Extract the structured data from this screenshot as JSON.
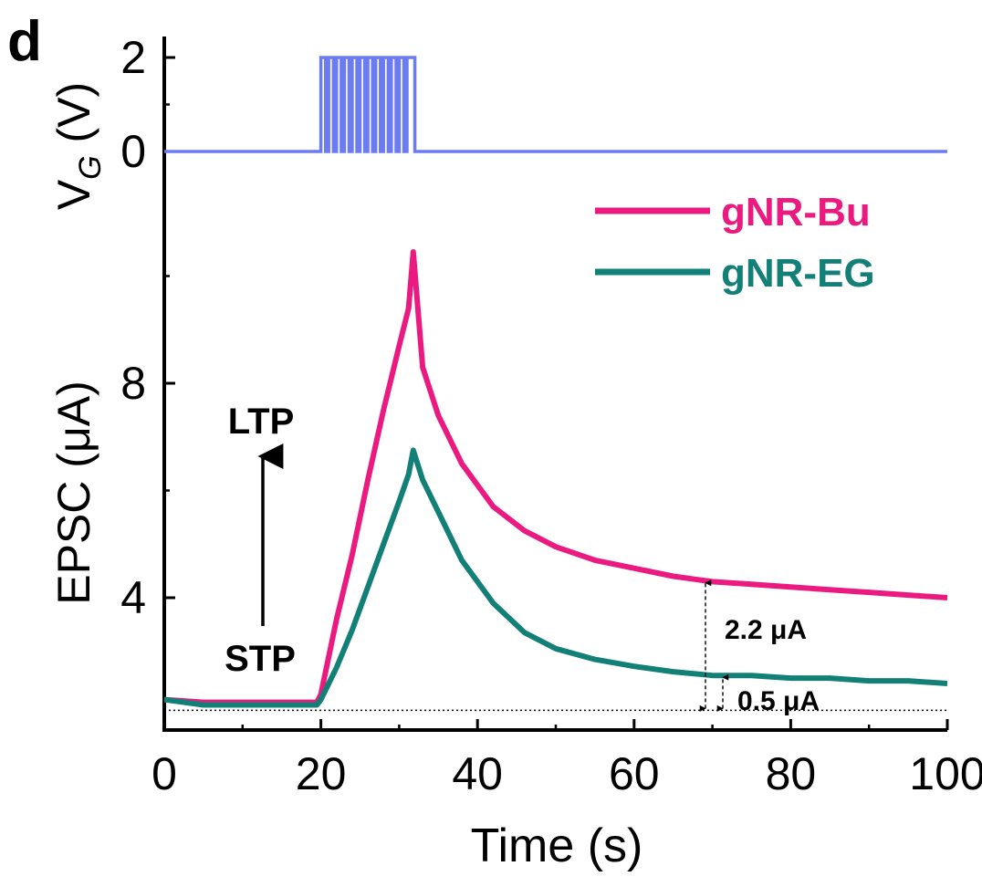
{
  "panel_label": "d",
  "colors": {
    "pulse": "#6b7bf2",
    "gnr_bu": "#ea1a80",
    "gnr_eg": "#138078",
    "axis": "#000000"
  },
  "chart_data": {
    "type": "line",
    "title": "",
    "xlabel": "Time (s)",
    "xlim": [
      0,
      100
    ],
    "x_ticks": [
      0,
      20,
      40,
      60,
      80,
      100
    ],
    "x_tick_labels": [
      "0",
      "20",
      "40",
      "60",
      "80",
      "100"
    ],
    "top_panel": {
      "ylabel_main": "V",
      "ylabel_sub": "G",
      "ylabel_unit": " (V)",
      "ylim": [
        0,
        2
      ],
      "y_ticks": [
        0,
        2
      ],
      "y_tick_labels": [
        "0",
        "2"
      ],
      "pulse_series": {
        "name": "V_G",
        "pulse_start": 20,
        "pulse_end": 32,
        "pulse_count": 12,
        "high": 2,
        "low": 0
      }
    },
    "bottom_panel": {
      "ylabel": "EPSC (μA)",
      "ylim": [
        1.7,
        11.4
      ],
      "y_ticks": [
        4,
        8
      ],
      "y_tick_labels": [
        "4",
        "8"
      ],
      "baseline": 1.9,
      "series": [
        {
          "name": "gNR-Bu",
          "x": [
            0,
            5,
            10,
            15,
            19.5,
            20,
            22,
            24,
            26,
            28,
            30,
            31.2,
            31.8,
            33,
            35,
            38,
            42,
            46,
            50,
            55,
            60,
            65,
            70,
            75,
            80,
            85,
            90,
            95,
            100
          ],
          "y": [
            2.1,
            2.05,
            2.05,
            2.05,
            2.05,
            2.2,
            3.6,
            4.8,
            6.2,
            7.5,
            8.7,
            9.4,
            10.45,
            8.3,
            7.4,
            6.5,
            5.7,
            5.25,
            4.95,
            4.7,
            4.55,
            4.4,
            4.3,
            4.25,
            4.2,
            4.15,
            4.1,
            4.05,
            4.0
          ]
        },
        {
          "name": "gNR-EG",
          "x": [
            0,
            5,
            10,
            15,
            19.5,
            20,
            22,
            24,
            26,
            28,
            30,
            31.2,
            31.8,
            33,
            35,
            38,
            42,
            46,
            50,
            55,
            60,
            65,
            70,
            75,
            80,
            85,
            90,
            95,
            100
          ],
          "y": [
            2.1,
            2.0,
            2.0,
            2.0,
            2.0,
            2.1,
            2.7,
            3.4,
            4.2,
            5.0,
            5.8,
            6.3,
            6.75,
            6.2,
            5.6,
            4.7,
            3.9,
            3.35,
            3.05,
            2.85,
            2.72,
            2.62,
            2.55,
            2.55,
            2.5,
            2.5,
            2.45,
            2.45,
            2.4
          ]
        }
      ],
      "annotations": {
        "stp": "STP",
        "ltp": "LTP",
        "delta_bu": "2.2 μA",
        "delta_eg": "0.5 μA"
      }
    },
    "legend": [
      "gNR-Bu",
      "gNR-EG"
    ],
    "legend_position": "top-right of lower panel"
  }
}
